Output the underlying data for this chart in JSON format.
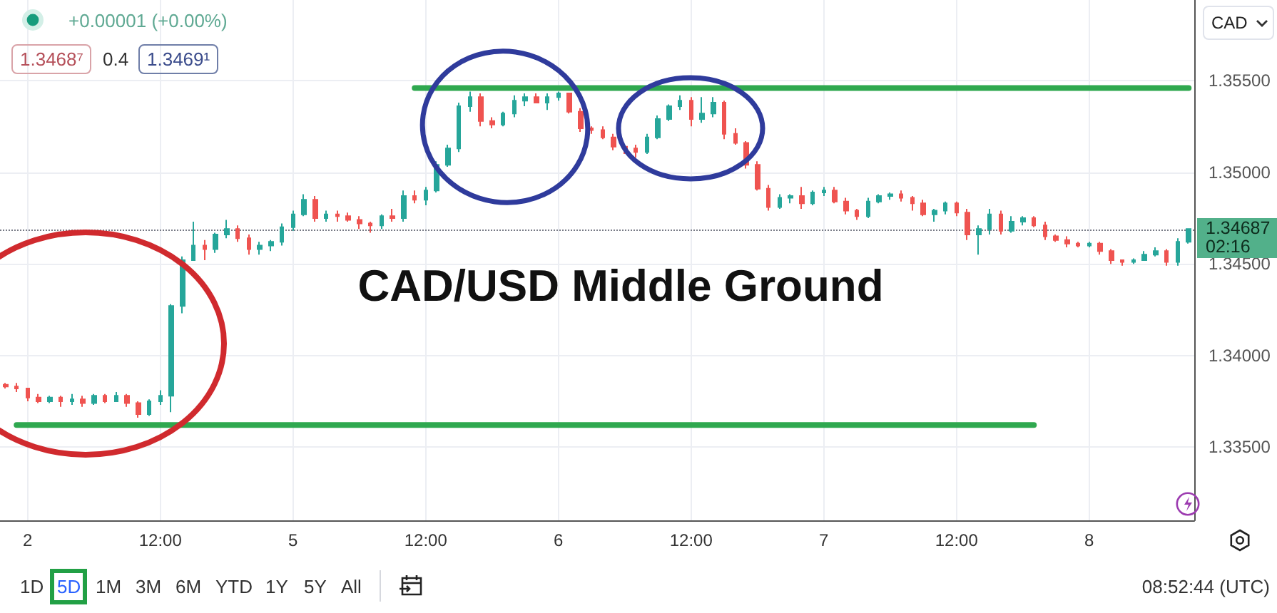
{
  "chart_data": {
    "type": "candlestick",
    "title": "CAD/USD Middle Ground",
    "categories": [
      null,
      null,
      "2",
      null,
      null,
      null,
      null,
      null,
      null,
      null,
      null,
      null,
      null,
      null,
      "12:00",
      null,
      null,
      null,
      null,
      null,
      null,
      null,
      null,
      null,
      null,
      null,
      "5",
      null,
      null,
      null,
      null,
      null,
      null,
      null,
      null,
      null,
      null,
      null,
      "12:00",
      null,
      null,
      null,
      null,
      null,
      null,
      null,
      null,
      null,
      null,
      null,
      "6",
      null,
      null,
      null,
      null,
      null,
      null,
      null,
      null,
      null,
      null,
      null,
      "12:00",
      null,
      null,
      null,
      null,
      null,
      null,
      null,
      null,
      null,
      null,
      null,
      "7",
      null,
      null,
      null,
      null,
      null,
      null,
      null,
      null,
      null,
      null,
      null,
      "12:00",
      null,
      null,
      null,
      null,
      null,
      null,
      null,
      null,
      null,
      null,
      null,
      "8",
      null,
      null,
      null,
      null,
      null,
      null,
      null,
      null,
      null
    ],
    "ohlc": [
      [
        1.3384,
        1.3385,
        1.3382,
        1.3383
      ],
      [
        1.3383,
        1.3385,
        1.338,
        1.3382
      ],
      [
        1.3382,
        1.3382,
        1.3375,
        1.3377
      ],
      [
        1.3377,
        1.3379,
        1.3374,
        1.3375
      ],
      [
        1.3375,
        1.3378,
        1.3374,
        1.3377
      ],
      [
        1.3377,
        1.3378,
        1.3372,
        1.3375
      ],
      [
        1.3375,
        1.3379,
        1.3373,
        1.3376
      ],
      [
        1.3376,
        1.3378,
        1.3372,
        1.3374
      ],
      [
        1.3374,
        1.3379,
        1.3373,
        1.3378
      ],
      [
        1.3378,
        1.3379,
        1.3374,
        1.3375
      ],
      [
        1.3375,
        1.338,
        1.3375,
        1.3378
      ],
      [
        1.3378,
        1.3379,
        1.3372,
        1.3374
      ],
      [
        1.3374,
        1.3375,
        1.3366,
        1.3368
      ],
      [
        1.3368,
        1.3376,
        1.3367,
        1.3375
      ],
      [
        1.3375,
        1.3381,
        1.3373,
        1.3378
      ],
      [
        1.3378,
        1.3428,
        1.3369,
        1.3427
      ],
      [
        1.3427,
        1.3454,
        1.3423,
        1.3452
      ],
      [
        1.3452,
        1.3473,
        1.3452,
        1.346
      ],
      [
        1.346,
        1.3463,
        1.3452,
        1.3458
      ],
      [
        1.3458,
        1.3467,
        1.3456,
        1.3466
      ],
      [
        1.3466,
        1.3474,
        1.3464,
        1.3469
      ],
      [
        1.3469,
        1.3471,
        1.3462,
        1.3464
      ],
      [
        1.3464,
        1.3466,
        1.3455,
        1.3458
      ],
      [
        1.3458,
        1.3462,
        1.3455,
        1.346
      ],
      [
        1.346,
        1.3463,
        1.3457,
        1.3462
      ],
      [
        1.3462,
        1.3472,
        1.346,
        1.347
      ],
      [
        1.347,
        1.3479,
        1.3468,
        1.3477
      ],
      [
        1.3477,
        1.3488,
        1.3476,
        1.3485
      ],
      [
        1.3485,
        1.3487,
        1.3473,
        1.3475
      ],
      [
        1.3475,
        1.3479,
        1.3473,
        1.3477
      ],
      [
        1.3477,
        1.3479,
        1.3473,
        1.3476
      ],
      [
        1.3476,
        1.3478,
        1.3473,
        1.3474
      ],
      [
        1.3474,
        1.3476,
        1.3469,
        1.3472
      ],
      [
        1.3472,
        1.3473,
        1.3467,
        1.3471
      ],
      [
        1.3471,
        1.3477,
        1.3469,
        1.3476
      ],
      [
        1.3476,
        1.348,
        1.3473,
        1.3475
      ],
      [
        1.3475,
        1.349,
        1.3473,
        1.3487
      ],
      [
        1.3487,
        1.349,
        1.3483,
        1.3485
      ],
      [
        1.3485,
        1.3492,
        1.3482,
        1.349
      ],
      [
        1.349,
        1.3506,
        1.3489,
        1.3504
      ],
      [
        1.3504,
        1.3515,
        1.3503,
        1.3513
      ],
      [
        1.3513,
        1.3538,
        1.3511,
        1.3536
      ],
      [
        1.3536,
        1.3544,
        1.3533,
        1.3541
      ],
      [
        1.3541,
        1.3543,
        1.3525,
        1.3528
      ],
      [
        1.3528,
        1.353,
        1.3524,
        1.3526
      ],
      [
        1.3526,
        1.3533,
        1.3525,
        1.3532
      ],
      [
        1.3532,
        1.3542,
        1.353,
        1.3539
      ],
      [
        1.3539,
        1.3543,
        1.3536,
        1.3541
      ],
      [
        1.3541,
        1.3543,
        1.3538,
        1.3538
      ],
      [
        1.3538,
        1.3543,
        1.3534,
        1.3541
      ],
      [
        1.3541,
        1.3544,
        1.3539,
        1.3543
      ],
      [
        1.3543,
        1.3543,
        1.3532,
        1.3533
      ],
      [
        1.3533,
        1.3535,
        1.3522,
        1.3524
      ],
      [
        1.3524,
        1.3525,
        1.3521,
        1.3523
      ],
      [
        1.3523,
        1.3525,
        1.3518,
        1.3519
      ],
      [
        1.3519,
        1.3521,
        1.3512,
        1.3514
      ],
      [
        1.3514,
        1.3515,
        1.351,
        1.3513
      ],
      [
        1.3513,
        1.3515,
        1.3508,
        1.3511
      ],
      [
        1.3511,
        1.3521,
        1.351,
        1.3519
      ],
      [
        1.3519,
        1.3531,
        1.3518,
        1.3529
      ],
      [
        1.3529,
        1.3537,
        1.3528,
        1.3536
      ],
      [
        1.3536,
        1.3542,
        1.3534,
        1.3539
      ],
      [
        1.3539,
        1.3541,
        1.3525,
        1.3529
      ],
      [
        1.3529,
        1.3541,
        1.3527,
        1.3532
      ],
      [
        1.3532,
        1.3541,
        1.353,
        1.3538
      ],
      [
        1.3538,
        1.3539,
        1.3518,
        1.3521
      ],
      [
        1.3521,
        1.3524,
        1.3515,
        1.3516
      ],
      [
        1.3516,
        1.3517,
        1.3502,
        1.3504
      ],
      [
        1.3504,
        1.3506,
        1.349,
        1.3491
      ],
      [
        1.3491,
        1.3493,
        1.3479,
        1.3481
      ],
      [
        1.3481,
        1.3488,
        1.348,
        1.3486
      ],
      [
        1.3486,
        1.3488,
        1.3483,
        1.3487
      ],
      [
        1.3487,
        1.3492,
        1.348,
        1.3483
      ],
      [
        1.3483,
        1.349,
        1.3482,
        1.3489
      ],
      [
        1.3489,
        1.3492,
        1.3487,
        1.349
      ],
      [
        1.349,
        1.3492,
        1.3483,
        1.3484
      ],
      [
        1.3484,
        1.3486,
        1.3477,
        1.3479
      ],
      [
        1.3479,
        1.348,
        1.3474,
        1.3476
      ],
      [
        1.3476,
        1.3486,
        1.3475,
        1.3484
      ],
      [
        1.3484,
        1.3488,
        1.3483,
        1.3487
      ],
      [
        1.3487,
        1.3489,
        1.3485,
        1.3488
      ],
      [
        1.3488,
        1.349,
        1.3484,
        1.3486
      ],
      [
        1.3486,
        1.3487,
        1.3479,
        1.3483
      ],
      [
        1.3483,
        1.3485,
        1.3476,
        1.3477
      ],
      [
        1.3477,
        1.348,
        1.3473,
        1.3479
      ],
      [
        1.3479,
        1.3484,
        1.3477,
        1.3483
      ],
      [
        1.3483,
        1.3484,
        1.3476,
        1.3478
      ],
      [
        1.3478,
        1.348,
        1.3463,
        1.3466
      ],
      [
        1.3466,
        1.3471,
        1.3455,
        1.3469
      ],
      [
        1.3469,
        1.348,
        1.3466,
        1.3477
      ],
      [
        1.3477,
        1.3479,
        1.3466,
        1.3468
      ],
      [
        1.3468,
        1.3476,
        1.3467,
        1.3473
      ],
      [
        1.3473,
        1.3476,
        1.3471,
        1.3475
      ],
      [
        1.3475,
        1.3476,
        1.347,
        1.3471
      ],
      [
        1.3471,
        1.3473,
        1.3463,
        1.3465
      ],
      [
        1.3465,
        1.3466,
        1.3462,
        1.3463
      ],
      [
        1.3463,
        1.3465,
        1.3459,
        1.3461
      ],
      [
        1.3461,
        1.3462,
        1.3459,
        1.346
      ],
      [
        1.346,
        1.3462,
        1.3459,
        1.3461
      ],
      [
        1.3461,
        1.3462,
        1.3455,
        1.3457
      ],
      [
        1.3457,
        1.3458,
        1.345,
        1.3452
      ],
      [
        1.3452,
        1.3452,
        1.3449,
        1.3451
      ],
      [
        1.3451,
        1.3453,
        1.345,
        1.3452
      ],
      [
        1.3452,
        1.3457,
        1.3452,
        1.3455
      ],
      [
        1.3455,
        1.3459,
        1.3454,
        1.3457
      ],
      [
        1.3457,
        1.3458,
        1.3449,
        1.3451
      ],
      [
        1.3451,
        1.3464,
        1.3449,
        1.3462
      ],
      [
        1.3462,
        1.3469,
        1.3461,
        1.3469
      ]
    ],
    "colors": [
      "#ef5350",
      "#ef5350",
      "#ef5350",
      "#ef5350",
      "#26a69a",
      "#ef5350",
      "#26a69a",
      "#ef5350",
      "#26a69a",
      "#ef5350",
      "#26a69a",
      "#ef5350",
      "#ef5350",
      "#26a69a",
      "#26a69a",
      "#26a69a",
      "#26a69a",
      "#26a69a",
      "#ef5350",
      "#26a69a",
      "#26a69a",
      "#ef5350",
      "#ef5350",
      "#26a69a",
      "#26a69a",
      "#26a69a",
      "#26a69a",
      "#26a69a",
      "#ef5350",
      "#26a69a",
      "#ef5350",
      "#ef5350",
      "#ef5350",
      "#ef5350",
      "#26a69a",
      "#ef5350",
      "#26a69a",
      "#ef5350",
      "#26a69a",
      "#26a69a",
      "#26a69a",
      "#26a69a",
      "#26a69a",
      "#ef5350",
      "#ef5350",
      "#26a69a",
      "#26a69a",
      "#26a69a",
      "#ef5350",
      "#26a69a",
      "#26a69a",
      "#ef5350",
      "#ef5350",
      "#ef5350",
      "#ef5350",
      "#ef5350",
      "#ef5350",
      "#ef5350",
      "#26a69a",
      "#26a69a",
      "#26a69a",
      "#26a69a",
      "#ef5350",
      "#26a69a",
      "#26a69a",
      "#ef5350",
      "#ef5350",
      "#ef5350",
      "#ef5350",
      "#ef5350",
      "#26a69a",
      "#26a69a",
      "#ef5350",
      "#26a69a",
      "#26a69a",
      "#ef5350",
      "#ef5350",
      "#ef5350",
      "#26a69a",
      "#26a69a",
      "#26a69a",
      "#ef5350",
      "#ef5350",
      "#ef5350",
      "#26a69a",
      "#26a69a",
      "#ef5350",
      "#ef5350",
      "#26a69a",
      "#26a69a",
      "#ef5350",
      "#26a69a",
      "#26a69a",
      "#ef5350",
      "#ef5350",
      "#ef5350",
      "#ef5350",
      "#ef5350",
      "#26a69a",
      "#ef5350",
      "#ef5350",
      "#ef5350",
      "#26a69a",
      "#26a69a",
      "#26a69a",
      "#ef5350",
      "#26a69a",
      "#26a69a"
    ],
    "series": [
      {
        "type": "line",
        "color": "#2fa84f",
        "values": [
          null,
          null,
          null,
          null,
          null,
          null,
          null,
          null,
          null,
          null,
          null,
          null,
          null,
          null,
          null,
          null,
          null,
          null,
          null,
          null,
          null,
          null,
          null,
          null,
          null,
          null,
          null,
          null,
          null,
          null,
          null,
          null,
          null,
          null,
          null,
          null,
          null,
          1.3546,
          1.3546,
          1.3546,
          1.3546,
          1.3546,
          1.3546,
          1.3546,
          1.3546,
          1.3546,
          1.3546,
          1.3546,
          1.3546,
          1.3546,
          1.3546,
          1.3546,
          1.3546,
          1.3546,
          1.3546,
          1.3546,
          1.3546,
          1.3546,
          1.3546,
          1.3546,
          1.3546,
          1.3546,
          1.3546,
          1.3546,
          1.3546,
          1.3546,
          1.3546,
          1.3546,
          1.3546,
          1.3546,
          1.3546,
          1.3546,
          1.3546,
          1.3546,
          1.3546,
          1.3546,
          1.3546,
          1.3546,
          1.3546,
          1.3546,
          1.3546,
          1.3546,
          1.3546,
          1.3546,
          1.3546,
          1.3546,
          1.3546,
          1.3546,
          1.3546,
          1.3546,
          1.3546,
          1.3546,
          1.3546,
          1.3546,
          1.3546,
          1.3546,
          1.3546,
          1.3546,
          1.3546,
          1.3546,
          1.3546,
          1.3546,
          1.3546,
          1.3546,
          1.3546,
          1.3546,
          1.3546,
          1.3546
        ]
      },
      {
        "type": "line",
        "color": "#2fa84f",
        "values": [
          null,
          1.3362,
          1.3362,
          1.3362,
          1.3362,
          1.3362,
          1.3362,
          1.3362,
          1.3362,
          1.3362,
          1.3362,
          1.3362,
          1.3362,
          1.3362,
          1.3362,
          1.3362,
          1.3362,
          1.3362,
          1.3362,
          1.3362,
          1.3362,
          1.3362,
          1.3362,
          1.3362,
          1.3362,
          1.3362,
          1.3362,
          1.3362,
          1.3362,
          1.3362,
          1.3362,
          1.3362,
          1.3362,
          1.3362,
          1.3362,
          1.3362,
          1.3362,
          1.3362,
          1.3362,
          1.3362,
          1.3362,
          1.3362,
          1.3362,
          1.3362,
          1.3362,
          1.3362,
          1.3362,
          1.3362,
          1.3362,
          1.3362,
          1.3362,
          1.3362,
          1.3362,
          1.3362,
          1.3362,
          1.3362,
          1.3362,
          1.3362,
          1.3362,
          1.3362,
          1.3362,
          1.3362,
          1.3362,
          1.3362,
          1.3362,
          1.3362,
          1.3362,
          1.3362,
          1.3362,
          1.3362,
          1.3362,
          1.3362,
          1.3362,
          1.3362,
          1.3362,
          1.3362,
          1.3362,
          1.3362,
          1.3362,
          1.3362,
          1.3362,
          1.3362,
          1.3362,
          1.3362,
          1.3362,
          1.3362,
          1.3362,
          1.3362,
          1.3362,
          1.3362,
          1.3362,
          1.3362,
          1.3362,
          1.3362,
          null,
          null,
          null,
          null,
          null,
          null,
          null,
          null,
          null,
          null,
          null,
          null,
          null,
          null
        ]
      }
    ],
    "ylabel": "CAD",
    "ylim": [
      1.331,
      1.3594
    ],
    "yticks": [
      {
        "value": 1.335,
        "label": "1.33500"
      },
      {
        "value": 1.34,
        "label": "1.34000"
      },
      {
        "value": 1.345,
        "label": "1.34500"
      },
      {
        "value": 1.35,
        "label": "1.35000"
      },
      {
        "value": 1.355,
        "label": "1.35500"
      }
    ],
    "ref_lines": [
      {
        "axis": "y",
        "value": 1.34687,
        "label": "1.34687",
        "line_style": "dotted",
        "color": "#787b86"
      }
    ],
    "annotations": [
      "+0.00001 (+0.00%)",
      "1.3468⁷",
      "0.4",
      "1.3469¹",
      "02:16",
      "1D",
      "5D",
      "1M",
      "3M",
      "6M",
      "YTD",
      "1Y",
      "5Y",
      "All",
      "08:52:44 (UTC)"
    ],
    "grid": true,
    "marker": "none"
  }
}
